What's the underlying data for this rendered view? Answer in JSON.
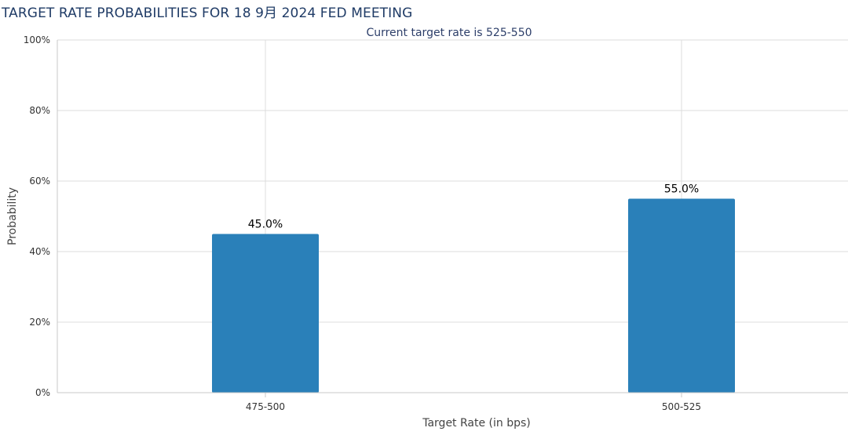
{
  "title": "TARGET RATE PROBABILITIES FOR 18 9月 2024 FED MEETING",
  "colors": {
    "bar": "#2a80b9",
    "grid": "#dcdcdc",
    "axis": "#c8c8c8",
    "title": "#1f3b66"
  },
  "chart_data": {
    "type": "bar",
    "title": "TARGET RATE PROBABILITIES FOR 18 9月 2024 FED MEETING",
    "subtitle": "Current target rate is 525-550",
    "xlabel": "Target Rate (in bps)",
    "ylabel": "Probability",
    "categories": [
      "475-500",
      "500-525"
    ],
    "values": [
      45.0,
      55.0
    ],
    "value_labels": [
      "45.0%",
      "55.0%"
    ],
    "ylim": [
      0,
      100
    ],
    "yticks": [
      0,
      20,
      40,
      60,
      80,
      100
    ],
    "ytick_labels": [
      "0%",
      "20%",
      "40%",
      "60%",
      "80%",
      "100%"
    ],
    "grid": true,
    "legend": "none"
  }
}
